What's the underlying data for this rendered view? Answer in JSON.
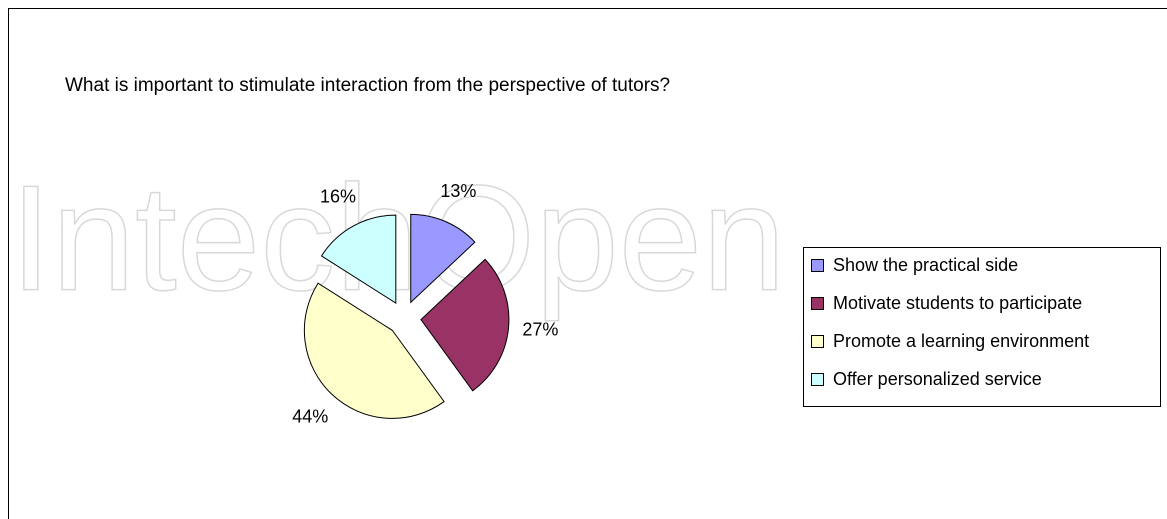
{
  "chart_data": {
    "type": "pie",
    "title": "What is important to stimulate interaction from the perspective of tutors?",
    "watermark": "IntechOpen",
    "categories": [
      "Show the practical side",
      "Motivate students to participate",
      "Promote a learning environment",
      "Offer personalized service"
    ],
    "values": [
      13,
      27,
      44,
      16
    ],
    "value_labels": [
      "13%",
      "27%",
      "44%",
      "16%"
    ],
    "colors": [
      "#9999ff",
      "#993366",
      "#ffffcc",
      "#ccffff"
    ],
    "exploded": true,
    "legend": "right"
  }
}
